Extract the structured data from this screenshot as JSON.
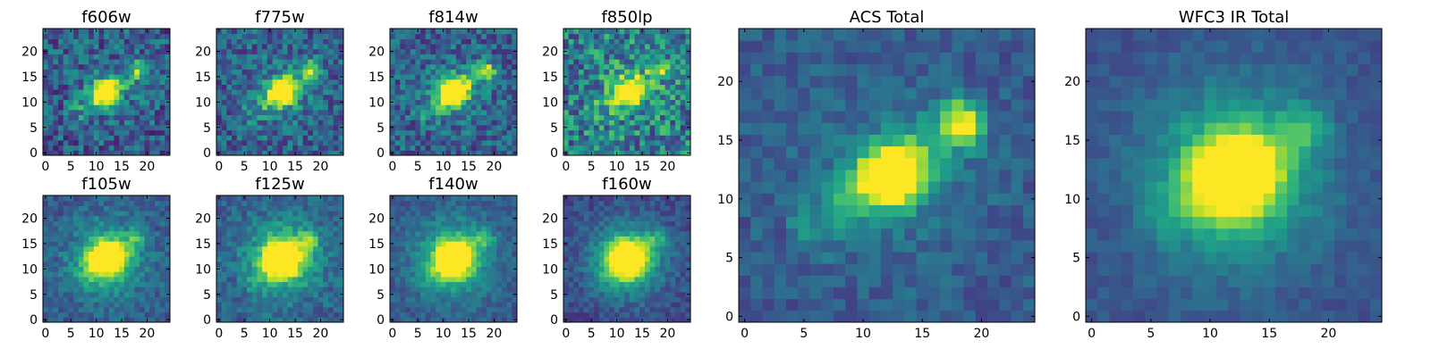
{
  "chart_data": [
    {
      "type": "heatmap",
      "title": "f606w",
      "xticks": [
        "0",
        "5",
        "10",
        "15",
        "20"
      ],
      "yticks": [
        "0",
        "5",
        "10",
        "15",
        "20"
      ],
      "xlim": [
        -0.5,
        24.5
      ],
      "ylim": [
        -0.5,
        24.5
      ],
      "grid": false,
      "colormap": "viridis",
      "features": {
        "core": [
          12,
          12,
          1.0
        ],
        "knot": [
          18.5,
          16.5,
          0.45
        ],
        "bridge_strength": 0.35,
        "core_sigma": 1.6,
        "halo_strength": 0.1,
        "noise": 0.22,
        "background": 0.28,
        "seed": 11
      }
    },
    {
      "type": "heatmap",
      "title": "f775w",
      "xticks": [
        "0",
        "5",
        "10",
        "15",
        "20"
      ],
      "yticks": [
        "0",
        "5",
        "10",
        "15",
        "20"
      ],
      "xlim": [
        -0.5,
        24.5
      ],
      "ylim": [
        -0.5,
        24.5
      ],
      "grid": false,
      "colormap": "viridis",
      "features": {
        "core": [
          12.5,
          12,
          1.0
        ],
        "knot": [
          18.5,
          16.5,
          0.45
        ],
        "bridge_strength": 0.35,
        "core_sigma": 1.7,
        "halo_strength": 0.12,
        "noise": 0.2,
        "background": 0.3,
        "seed": 23
      }
    },
    {
      "type": "heatmap",
      "title": "f814w",
      "xticks": [
        "0",
        "5",
        "10",
        "15",
        "20"
      ],
      "yticks": [
        "0",
        "5",
        "10",
        "15",
        "20"
      ],
      "xlim": [
        -0.5,
        24.5
      ],
      "ylim": [
        -0.5,
        24.5
      ],
      "grid": false,
      "colormap": "viridis",
      "features": {
        "core": [
          12,
          12,
          1.0
        ],
        "knot": [
          18.5,
          16.5,
          0.42
        ],
        "bridge_strength": 0.35,
        "core_sigma": 1.8,
        "halo_strength": 0.12,
        "noise": 0.2,
        "background": 0.3,
        "seed": 37
      }
    },
    {
      "type": "heatmap",
      "title": "f850lp",
      "xticks": [
        "0",
        "5",
        "10",
        "15",
        "20"
      ],
      "yticks": [
        "0",
        "5",
        "10",
        "15",
        "20"
      ],
      "xlim": [
        -0.5,
        24.5
      ],
      "ylim": [
        -0.5,
        24.5
      ],
      "grid": false,
      "colormap": "viridis",
      "features": {
        "core": [
          12.5,
          12,
          0.9
        ],
        "knot": [
          18.5,
          16.5,
          0.3
        ],
        "bridge_strength": 0.25,
        "core_sigma": 1.8,
        "halo_strength": 0.1,
        "noise": 0.28,
        "background": 0.42,
        "seed": 51
      }
    },
    {
      "type": "heatmap",
      "title": "f105w",
      "xticks": [
        "0",
        "5",
        "10",
        "15",
        "20"
      ],
      "yticks": [
        "0",
        "5",
        "10",
        "15",
        "20"
      ],
      "xlim": [
        -0.5,
        24.5
      ],
      "ylim": [
        -0.5,
        24.5
      ],
      "grid": false,
      "colormap": "viridis",
      "features": {
        "core": [
          12,
          12,
          0.9
        ],
        "knot": [
          18,
          16,
          0.2
        ],
        "bridge_strength": 0.2,
        "core_sigma": 2.3,
        "halo_strength": 0.35,
        "noise": 0.12,
        "background": 0.28,
        "seed": 61
      }
    },
    {
      "type": "heatmap",
      "title": "f125w",
      "xticks": [
        "0",
        "5",
        "10",
        "15",
        "20"
      ],
      "yticks": [
        "0",
        "5",
        "10",
        "15",
        "20"
      ],
      "xlim": [
        -0.5,
        24.5
      ],
      "ylim": [
        -0.5,
        24.5
      ],
      "grid": false,
      "colormap": "viridis",
      "features": {
        "core": [
          12.5,
          12,
          0.9
        ],
        "knot": [
          18,
          16,
          0.22
        ],
        "bridge_strength": 0.25,
        "core_sigma": 2.4,
        "halo_strength": 0.38,
        "noise": 0.13,
        "background": 0.3,
        "seed": 73
      }
    },
    {
      "type": "heatmap",
      "title": "f140w",
      "xticks": [
        "0",
        "5",
        "10",
        "15",
        "20"
      ],
      "yticks": [
        "0",
        "5",
        "10",
        "15",
        "20"
      ],
      "xlim": [
        -0.5,
        24.5
      ],
      "ylim": [
        -0.5,
        24.5
      ],
      "grid": false,
      "colormap": "viridis",
      "features": {
        "core": [
          12,
          12,
          0.9
        ],
        "knot": [
          18,
          16,
          0.2
        ],
        "bridge_strength": 0.2,
        "core_sigma": 2.4,
        "halo_strength": 0.38,
        "noise": 0.1,
        "background": 0.28,
        "seed": 89
      }
    },
    {
      "type": "heatmap",
      "title": "f160w",
      "xticks": [
        "0",
        "5",
        "10",
        "15",
        "20"
      ],
      "yticks": [
        "0",
        "5",
        "10",
        "15",
        "20"
      ],
      "xlim": [
        -0.5,
        24.5
      ],
      "ylim": [
        -0.5,
        24.5
      ],
      "grid": false,
      "colormap": "viridis",
      "features": {
        "core": [
          12,
          12,
          0.9
        ],
        "knot": [
          18,
          16,
          0.2
        ],
        "bridge_strength": 0.2,
        "core_sigma": 2.5,
        "halo_strength": 0.4,
        "noise": 0.1,
        "background": 0.22,
        "seed": 97
      }
    },
    {
      "type": "heatmap",
      "title": "ACS Total",
      "xticks": [
        "0",
        "5",
        "10",
        "15",
        "20"
      ],
      "yticks": [
        "0",
        "5",
        "10",
        "15",
        "20"
      ],
      "xlim": [
        -0.5,
        24.5
      ],
      "ylim": [
        -0.5,
        24.5
      ],
      "grid": false,
      "colormap": "viridis",
      "features": {
        "core": [
          12.5,
          12,
          1.0
        ],
        "knot": [
          18.5,
          16.5,
          0.6
        ],
        "bridge_strength": 0.4,
        "core_sigma": 1.7,
        "halo_strength": 0.12,
        "noise": 0.1,
        "background": 0.28,
        "seed": 131
      }
    },
    {
      "type": "heatmap",
      "title": "WFC3 IR Total",
      "xticks": [
        "0",
        "5",
        "10",
        "15",
        "20"
      ],
      "yticks": [
        "0",
        "5",
        "10",
        "15",
        "20"
      ],
      "xlim": [
        -0.5,
        24.5
      ],
      "ylim": [
        -0.5,
        24.5
      ],
      "grid": false,
      "colormap": "viridis",
      "features": {
        "core": [
          12,
          12,
          0.92
        ],
        "knot": [
          18,
          16,
          0.22
        ],
        "bridge_strength": 0.2,
        "core_sigma": 2.4,
        "halo_strength": 0.4,
        "noise": 0.06,
        "background": 0.25,
        "seed": 151
      }
    }
  ]
}
